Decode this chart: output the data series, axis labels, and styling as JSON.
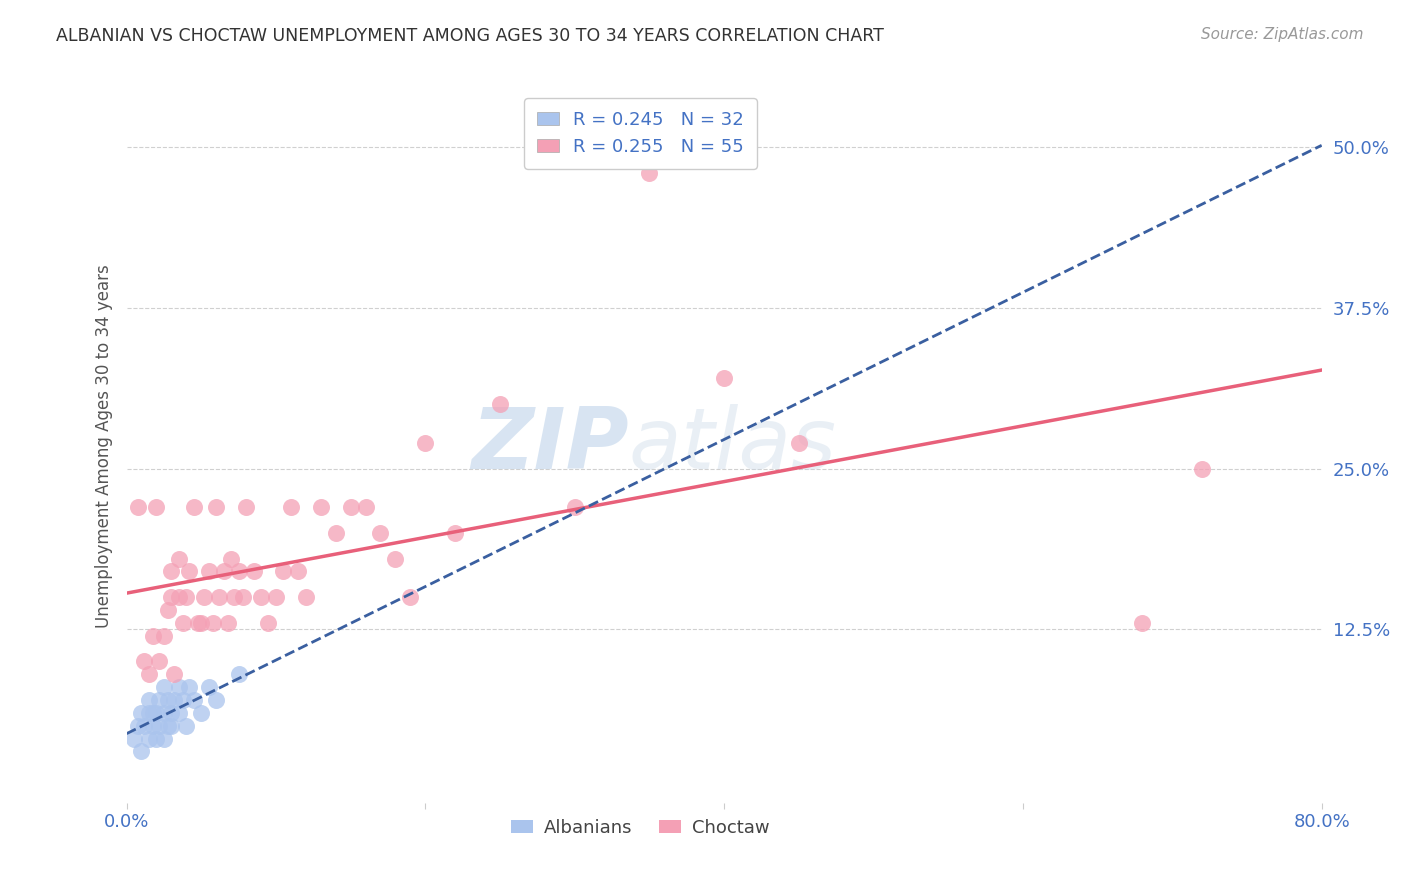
{
  "title": "ALBANIAN VS CHOCTAW UNEMPLOYMENT AMONG AGES 30 TO 34 YEARS CORRELATION CHART",
  "source": "Source: ZipAtlas.com",
  "ylabel": "Unemployment Among Ages 30 to 34 years",
  "xlim": [
    0.0,
    0.8
  ],
  "ylim": [
    -0.01,
    0.545
  ],
  "yticks": [
    0.125,
    0.25,
    0.375,
    0.5
  ],
  "ytick_labels": [
    "12.5%",
    "25.0%",
    "37.5%",
    "50.0%"
  ],
  "xticks": [
    0.0,
    0.2,
    0.4,
    0.6,
    0.8
  ],
  "xtick_labels": [
    "0.0%",
    "",
    "",
    "",
    "80.0%"
  ],
  "albanian_color": "#aac4ed",
  "choctaw_color": "#f4a0b5",
  "albanian_line_color": "#3a5fa0",
  "choctaw_line_color": "#e8607a",
  "background_color": "#ffffff",
  "grid_color": "#d0d0d0",
  "R_albanian": 0.245,
  "N_albanian": 32,
  "R_choctaw": 0.255,
  "N_choctaw": 55,
  "albanian_scatter_x": [
    0.005,
    0.008,
    0.01,
    0.01,
    0.012,
    0.015,
    0.015,
    0.015,
    0.018,
    0.018,
    0.02,
    0.02,
    0.022,
    0.022,
    0.025,
    0.025,
    0.025,
    0.028,
    0.028,
    0.03,
    0.03,
    0.032,
    0.035,
    0.035,
    0.038,
    0.04,
    0.042,
    0.045,
    0.05,
    0.055,
    0.06,
    0.075
  ],
  "albanian_scatter_y": [
    0.04,
    0.05,
    0.06,
    0.03,
    0.05,
    0.04,
    0.06,
    0.07,
    0.05,
    0.06,
    0.04,
    0.06,
    0.05,
    0.07,
    0.04,
    0.06,
    0.08,
    0.05,
    0.07,
    0.05,
    0.06,
    0.07,
    0.06,
    0.08,
    0.07,
    0.05,
    0.08,
    0.07,
    0.06,
    0.08,
    0.07,
    0.09
  ],
  "choctaw_scatter_x": [
    0.008,
    0.012,
    0.015,
    0.018,
    0.02,
    0.022,
    0.025,
    0.028,
    0.03,
    0.03,
    0.032,
    0.035,
    0.035,
    0.038,
    0.04,
    0.042,
    0.045,
    0.048,
    0.05,
    0.052,
    0.055,
    0.058,
    0.06,
    0.062,
    0.065,
    0.068,
    0.07,
    0.072,
    0.075,
    0.078,
    0.08,
    0.085,
    0.09,
    0.095,
    0.1,
    0.105,
    0.11,
    0.115,
    0.12,
    0.13,
    0.14,
    0.15,
    0.16,
    0.17,
    0.18,
    0.19,
    0.2,
    0.22,
    0.25,
    0.3,
    0.35,
    0.4,
    0.45,
    0.68,
    0.72
  ],
  "choctaw_scatter_y": [
    0.22,
    0.1,
    0.09,
    0.12,
    0.22,
    0.1,
    0.12,
    0.14,
    0.15,
    0.17,
    0.09,
    0.15,
    0.18,
    0.13,
    0.15,
    0.17,
    0.22,
    0.13,
    0.13,
    0.15,
    0.17,
    0.13,
    0.22,
    0.15,
    0.17,
    0.13,
    0.18,
    0.15,
    0.17,
    0.15,
    0.22,
    0.17,
    0.15,
    0.13,
    0.15,
    0.17,
    0.22,
    0.17,
    0.15,
    0.22,
    0.2,
    0.22,
    0.22,
    0.2,
    0.18,
    0.15,
    0.27,
    0.2,
    0.3,
    0.22,
    0.48,
    0.32,
    0.27,
    0.13,
    0.25
  ]
}
